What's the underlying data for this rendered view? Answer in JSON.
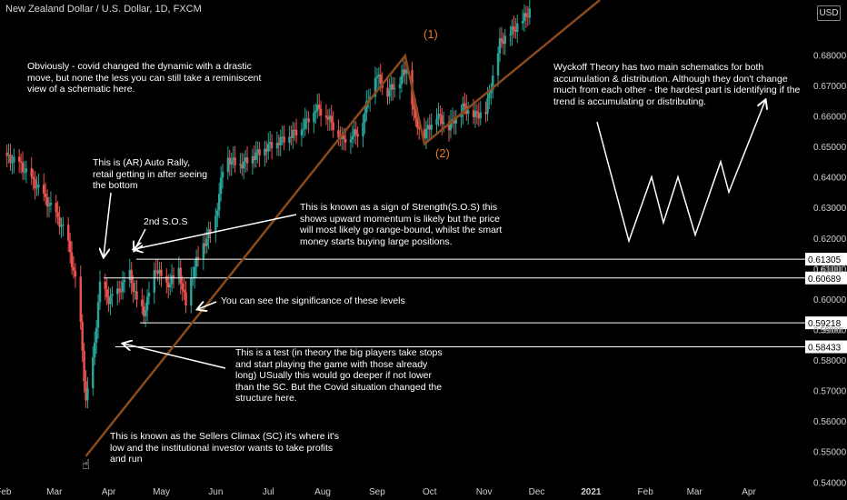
{
  "header": {
    "title": "New Zealand Dollar / U.S. Dollar, 1D, FXCM",
    "currency_badge": "USD"
  },
  "colors": {
    "background": "#000000",
    "up_candle": "#26a69a",
    "down_candle": "#ef5350",
    "trendline": "#8b4a1c",
    "wave_label": "#e07a2a",
    "level_line": "#ffffff"
  },
  "annotations": {
    "covid": "Obviously - covid changed the dynamic with a drastic move, but none the less you can still take a reminiscent view of a schematic here.",
    "wyckoff": "Wyckoff Theory has two main schematics for both accumulation & distribution. Although they don't change much from each other - the hardest part is identifying if the trend is accumulating or distributing.",
    "ar": "This is (AR) Auto Rally, retail getting in after seeing the bottom",
    "sos2": "2nd S.O.S",
    "sos": "This is known as a sign of Strength(S.O.S) this shows upward momentum is likely but the price will most likely go range-bound, whilst the smart money starts buying large positions.",
    "levels": "You can see the significance of these levels",
    "test": "This is a test (in theory the big players take stops and start playing the game with those already long)  USually this would go deeper if not lower than the SC. But the Covid situation changed the structure here.",
    "sc": "This is known as the Sellers Climax (SC) it's where it's low and the institutional investor wants to take profits and run",
    "wave1": "(1)",
    "wave2": "(2)"
  },
  "chart_data": {
    "type": "line",
    "title": "New Zealand Dollar / U.S. Dollar, 1D, FXCM",
    "xlabel": "",
    "ylabel": "",
    "x_ticks": [
      "Feb",
      "Mar",
      "Apr",
      "May",
      "Jun",
      "Jul",
      "Aug",
      "Sep",
      "Oct",
      "Nov",
      "Dec",
      "2021",
      "Feb",
      "Mar",
      "Apr"
    ],
    "y_ticks": [
      "0.68000",
      "0.67000",
      "0.66000",
      "0.65000",
      "0.64000",
      "0.63000",
      "0.62000",
      "0.61000",
      "0.60000",
      "0.59000",
      "0.58000",
      "0.57000",
      "0.56000",
      "0.55000",
      "0.54000"
    ],
    "ylim": [
      0.538,
      0.695
    ],
    "grid": false,
    "series": [
      {
        "values": [
          [
            "2020-02-01",
            0.648
          ],
          [
            "2020-02-10",
            0.645
          ],
          [
            "2020-02-20",
            0.637
          ],
          [
            "2020-03-01",
            0.628
          ],
          [
            "2020-03-08",
            0.62
          ],
          [
            "2020-03-13",
            0.605
          ],
          [
            "2020-03-16",
            0.59
          ],
          [
            "2020-03-19",
            0.565
          ],
          [
            "2020-03-23",
            0.578
          ],
          [
            "2020-03-27",
            0.603
          ],
          [
            "2020-04-01",
            0.598
          ],
          [
            "2020-04-06",
            0.6
          ],
          [
            "2020-04-13",
            0.606
          ],
          [
            "2020-04-17",
            0.597
          ],
          [
            "2020-04-21",
            0.593
          ],
          [
            "2020-04-28",
            0.608
          ],
          [
            "2020-05-04",
            0.602
          ],
          [
            "2020-05-11",
            0.607
          ],
          [
            "2020-05-15",
            0.596
          ],
          [
            "2020-05-20",
            0.609
          ],
          [
            "2020-06-01",
            0.625
          ],
          [
            "2020-06-06",
            0.645
          ],
          [
            "2020-06-15",
            0.643
          ],
          [
            "2020-06-24",
            0.647
          ],
          [
            "2020-07-01",
            0.65
          ],
          [
            "2020-07-10",
            0.653
          ],
          [
            "2020-07-20",
            0.657
          ],
          [
            "2020-07-28",
            0.664
          ],
          [
            "2020-08-03",
            0.662
          ],
          [
            "2020-08-12",
            0.654
          ],
          [
            "2020-08-22",
            0.657
          ],
          [
            "2020-08-31",
            0.676
          ],
          [
            "2020-09-07",
            0.67
          ],
          [
            "2020-09-14",
            0.674
          ],
          [
            "2020-09-18",
            0.678
          ],
          [
            "2020-09-23",
            0.66
          ],
          [
            "2020-09-28",
            0.656
          ],
          [
            "2020-10-05",
            0.662
          ],
          [
            "2020-10-12",
            0.658
          ],
          [
            "2020-10-20",
            0.664
          ],
          [
            "2020-10-27",
            0.661
          ],
          [
            "2020-11-02",
            0.662
          ],
          [
            "2020-11-10",
            0.684
          ],
          [
            "2020-11-20",
            0.689
          ],
          [
            "2020-11-28",
            0.694
          ]
        ]
      }
    ],
    "price_levels": [
      "0.61305",
      "0.60689",
      "0.59218",
      "0.58433"
    ],
    "axis_fragments": [
      "0.61000",
      "0.59000"
    ],
    "schematic_path": [
      0.658,
      0.619,
      0.64,
      0.625,
      0.64,
      0.621,
      0.645,
      0.635,
      0.665
    ]
  }
}
